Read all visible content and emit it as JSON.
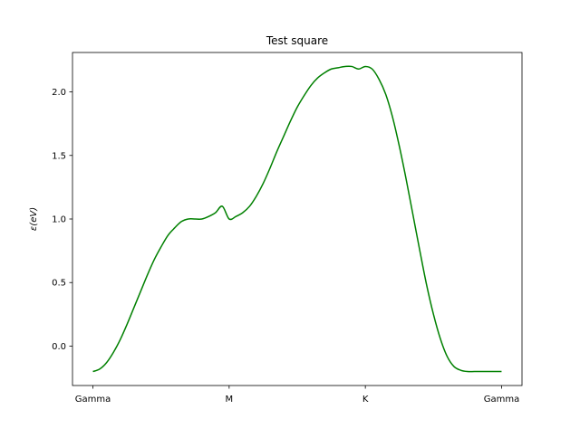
{
  "chart_data": {
    "type": "line",
    "title": "Test square",
    "xlabel": "",
    "ylabel": "ε(eV)",
    "x_ticks": [
      "Gamma",
      "M",
      "K",
      "Gamma"
    ],
    "x_tick_positions": [
      0,
      1,
      2,
      3
    ],
    "xlim": [
      -0.15,
      3.15
    ],
    "ylim": [
      -0.31,
      2.31
    ],
    "y_ticks": [
      0.0,
      0.5,
      1.0,
      1.5,
      2.0
    ],
    "y_tick_labels": [
      "0.0",
      "0.5",
      "1.0",
      "1.5",
      "2.0"
    ],
    "grid": false,
    "legend": "none",
    "series": [
      {
        "color": "#008000",
        "x": [
          0,
          0.05,
          0.1,
          0.15,
          0.2,
          0.25,
          0.3,
          0.35,
          0.4,
          0.45,
          0.5,
          0.55,
          0.6,
          0.65,
          0.7,
          0.75,
          0.8,
          0.85,
          0.9,
          0.95,
          1.0,
          1.05,
          1.1,
          1.15,
          1.2,
          1.25,
          1.3,
          1.35,
          1.4,
          1.45,
          1.5,
          1.55,
          1.6,
          1.65,
          1.7,
          1.75,
          1.8,
          1.85,
          1.9,
          1.95,
          2.0,
          2.05,
          2.1,
          2.15,
          2.2,
          2.25,
          2.3,
          2.35,
          2.4,
          2.45,
          2.5,
          2.55,
          2.6,
          2.65,
          2.7,
          2.75,
          2.8,
          2.85,
          2.9,
          2.95,
          3.0
        ],
        "y": [
          -0.2,
          -0.18,
          -0.13,
          -0.05,
          0.05,
          0.17,
          0.3,
          0.43,
          0.56,
          0.68,
          0.78,
          0.87,
          0.93,
          0.98,
          1.0,
          1.0,
          1.0,
          1.02,
          1.05,
          1.1,
          1.0,
          1.02,
          1.05,
          1.1,
          1.18,
          1.28,
          1.4,
          1.53,
          1.65,
          1.77,
          1.88,
          1.97,
          2.05,
          2.11,
          2.15,
          2.18,
          2.19,
          2.2,
          2.2,
          2.18,
          2.2,
          2.18,
          2.1,
          1.98,
          1.8,
          1.57,
          1.31,
          1.03,
          0.75,
          0.48,
          0.25,
          0.06,
          -0.08,
          -0.16,
          -0.19,
          -0.2,
          -0.2,
          -0.2,
          -0.2,
          -0.2,
          -0.2
        ]
      }
    ]
  }
}
